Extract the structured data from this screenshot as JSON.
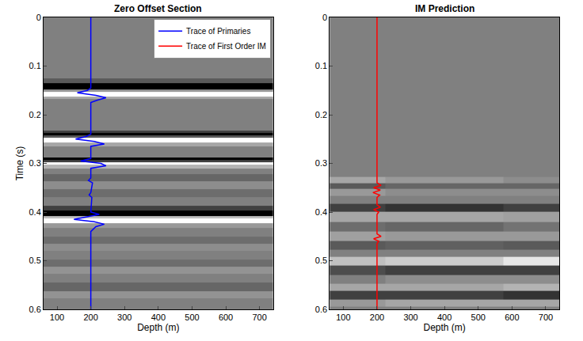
{
  "chart_data": [
    {
      "type": "heatmap",
      "title": "Zero Offset Section",
      "x_label": "Depth (m)",
      "y_label": "Time (s)",
      "xlim": [
        60,
        740
      ],
      "ylim": [
        0.6,
        0
      ],
      "xticks": [
        100,
        200,
        300,
        400,
        500,
        600,
        700
      ],
      "yticks": [
        0,
        0.1,
        0.2,
        0.3,
        0.4,
        0.5,
        0.6
      ],
      "zlim": [
        -1,
        1
      ],
      "legend": "upper right",
      "x": [
        50,
        750
      ],
      "y": [
        0,
        0.12,
        0.13,
        0.14,
        0.145,
        0.15,
        0.155,
        0.16,
        0.165,
        0.17,
        0.23,
        0.235,
        0.24,
        0.245,
        0.25,
        0.255,
        0.26,
        0.27,
        0.285,
        0.29,
        0.295,
        0.3,
        0.305,
        0.315,
        0.33,
        0.345,
        0.36,
        0.38,
        0.395,
        0.4,
        0.405,
        0.41,
        0.415,
        0.42,
        0.425,
        0.44,
        0.46,
        0.47,
        0.49,
        0.505,
        0.52,
        0.535,
        0.555,
        0.57,
        0.585,
        0.6
      ],
      "z": [
        [
          0,
          0
        ],
        [
          0,
          0
        ],
        [
          -0.3,
          -0.3
        ],
        [
          -1,
          -1
        ],
        [
          -1,
          -1
        ],
        [
          0.2,
          0.2
        ],
        [
          1,
          1
        ],
        [
          1,
          1
        ],
        [
          0.3,
          0.3
        ],
        [
          0,
          0
        ],
        [
          0,
          0
        ],
        [
          -0.5,
          -0.5
        ],
        [
          -1,
          -1
        ],
        [
          -0.3,
          -0.3
        ],
        [
          1,
          1
        ],
        [
          1,
          1
        ],
        [
          0.3,
          0.3
        ],
        [
          0,
          0
        ],
        [
          0,
          0
        ],
        [
          -1,
          -1
        ],
        [
          -0.5,
          -0.5
        ],
        [
          1,
          1
        ],
        [
          0.4,
          0.4
        ],
        [
          0,
          0
        ],
        [
          -0.2,
          -0.2
        ],
        [
          0.1,
          0.1
        ],
        [
          -0.15,
          -0.15
        ],
        [
          0,
          0
        ],
        [
          -0.5,
          -0.5
        ],
        [
          -1,
          -1
        ],
        [
          -1,
          -1
        ],
        [
          0.5,
          0.5
        ],
        [
          1,
          1
        ],
        [
          1,
          1
        ],
        [
          0.2,
          0.2
        ],
        [
          0,
          0
        ],
        [
          -0.15,
          -0.15
        ],
        [
          0.1,
          0.1
        ],
        [
          0,
          0
        ],
        [
          -0.15,
          -0.15
        ],
        [
          0.15,
          0.15
        ],
        [
          0,
          0
        ],
        [
          -0.2,
          -0.2
        ],
        [
          0.15,
          0.15
        ],
        [
          0,
          0
        ],
        [
          0,
          0
        ]
      ],
      "series": [
        {
          "name": "Trace of Primaries",
          "color": "#0000ff",
          "type": "line",
          "y": [
            0,
            0.145,
            0.15,
            0.155,
            0.16,
            0.165,
            0.17,
            0.175,
            0.24,
            0.245,
            0.25,
            0.255,
            0.26,
            0.265,
            0.29,
            0.295,
            0.3,
            0.305,
            0.31,
            0.33,
            0.335,
            0.34,
            0.36,
            0.365,
            0.37,
            0.4,
            0.405,
            0.41,
            0.415,
            0.42,
            0.425,
            0.43,
            0.44,
            0.6
          ],
          "x": [
            200,
            200,
            190,
            160,
            215,
            245,
            220,
            200,
            200,
            185,
            155,
            210,
            240,
            200,
            200,
            170,
            230,
            245,
            200,
            200,
            193,
            205,
            200,
            195,
            203,
            200,
            225,
            185,
            150,
            210,
            240,
            215,
            200,
            200
          ]
        },
        {
          "name": "Trace of First Order IM",
          "color": "#ff0000",
          "type": "line",
          "panel": 2,
          "y": [
            0,
            0.34,
            0.345,
            0.35,
            0.355,
            0.36,
            0.365,
            0.37,
            0.385,
            0.39,
            0.395,
            0.4,
            0.405,
            0.445,
            0.45,
            0.455,
            0.46,
            0.465,
            0.6
          ],
          "x": [
            200,
            200,
            212,
            190,
            210,
            188,
            208,
            200,
            200,
            210,
            190,
            205,
            200,
            200,
            212,
            190,
            205,
            200,
            200
          ]
        }
      ]
    },
    {
      "type": "heatmap",
      "title": "IM Prediction",
      "x_label": "Depth (m)",
      "xlim": [
        60,
        740
      ],
      "ylim": [
        0.6,
        0
      ],
      "xticks": [
        100,
        200,
        300,
        400,
        500,
        600,
        700
      ],
      "yticks": [
        0,
        0.1,
        0.2,
        0.3,
        0.4,
        0.5,
        0.6
      ],
      "zlim": [
        -1,
        1
      ],
      "x": [
        50,
        400,
        750
      ],
      "y": [
        0,
        0.32,
        0.335,
        0.345,
        0.36,
        0.375,
        0.39,
        0.41,
        0.43,
        0.45,
        0.47,
        0.485,
        0.5,
        0.52,
        0.54,
        0.555,
        0.57,
        0.59,
        0.6
      ],
      "z": [
        [
          0,
          0,
          0
        ],
        [
          0,
          0,
          0
        ],
        [
          0.3,
          0.2,
          0.1
        ],
        [
          -0.3,
          -0.2,
          -0.2
        ],
        [
          0.2,
          0.1,
          0.1
        ],
        [
          0,
          0,
          0
        ],
        [
          -0.5,
          -0.6,
          -0.5
        ],
        [
          0.3,
          0.3,
          0.25
        ],
        [
          -0.15,
          -0.2,
          -0.1
        ],
        [
          0.25,
          0.2,
          0.2
        ],
        [
          -0.3,
          -0.25,
          -0.3
        ],
        [
          0,
          0,
          0
        ],
        [
          0.5,
          0.6,
          0.8
        ],
        [
          -0.4,
          -0.5,
          -0.5
        ],
        [
          0,
          0.1,
          0.1
        ],
        [
          0.3,
          0.3,
          0.4
        ],
        [
          -0.5,
          -0.5,
          -0.6
        ],
        [
          0.2,
          0.3,
          0.3
        ],
        [
          0,
          0,
          0
        ]
      ]
    }
  ]
}
